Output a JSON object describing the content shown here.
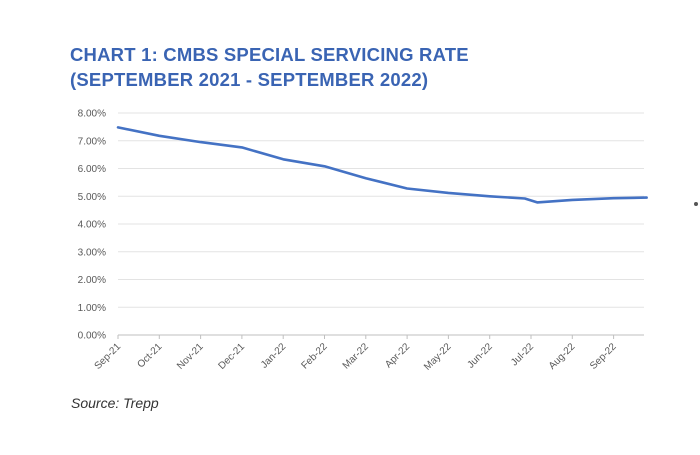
{
  "chart_data": {
    "type": "line",
    "title_lines": [
      "CHART 1: CMBS SPECIAL SERVICING RATE",
      "(SEPTEMBER 2021 - SEPTEMBER 2022)"
    ],
    "xlabel": "",
    "ylabel": "",
    "x_tick_labels": [
      "Sep-21",
      "Oct-21",
      "Nov-21",
      "Dec-21",
      "Jan-22",
      "Feb-22",
      "Mar-22",
      "Apr-22",
      "May-22",
      "Jun-22",
      "Jul-22",
      "Aug-22",
      "Sep-22"
    ],
    "y_tick_labels": [
      "0.00%",
      "1.00%",
      "2.00%",
      "3.00%",
      "4.00%",
      "5.00%",
      "6.00%",
      "7.00%",
      "8.00%"
    ],
    "ylim": [
      0,
      8
    ],
    "grid": "horizontal",
    "series": [
      {
        "name": "CMBS Special Servicing Rate",
        "color": "#4472c4",
        "x": [
          0,
          1,
          2,
          3,
          4,
          5,
          6,
          7,
          8,
          9,
          9.85,
          10.15,
          11,
          12,
          12.8
        ],
        "values": [
          7.48,
          7.18,
          6.95,
          6.76,
          6.33,
          6.08,
          5.65,
          5.28,
          5.12,
          5.0,
          4.92,
          4.78,
          4.87,
          4.93,
          4.95
        ]
      }
    ],
    "source": "Source: Trepp"
  }
}
